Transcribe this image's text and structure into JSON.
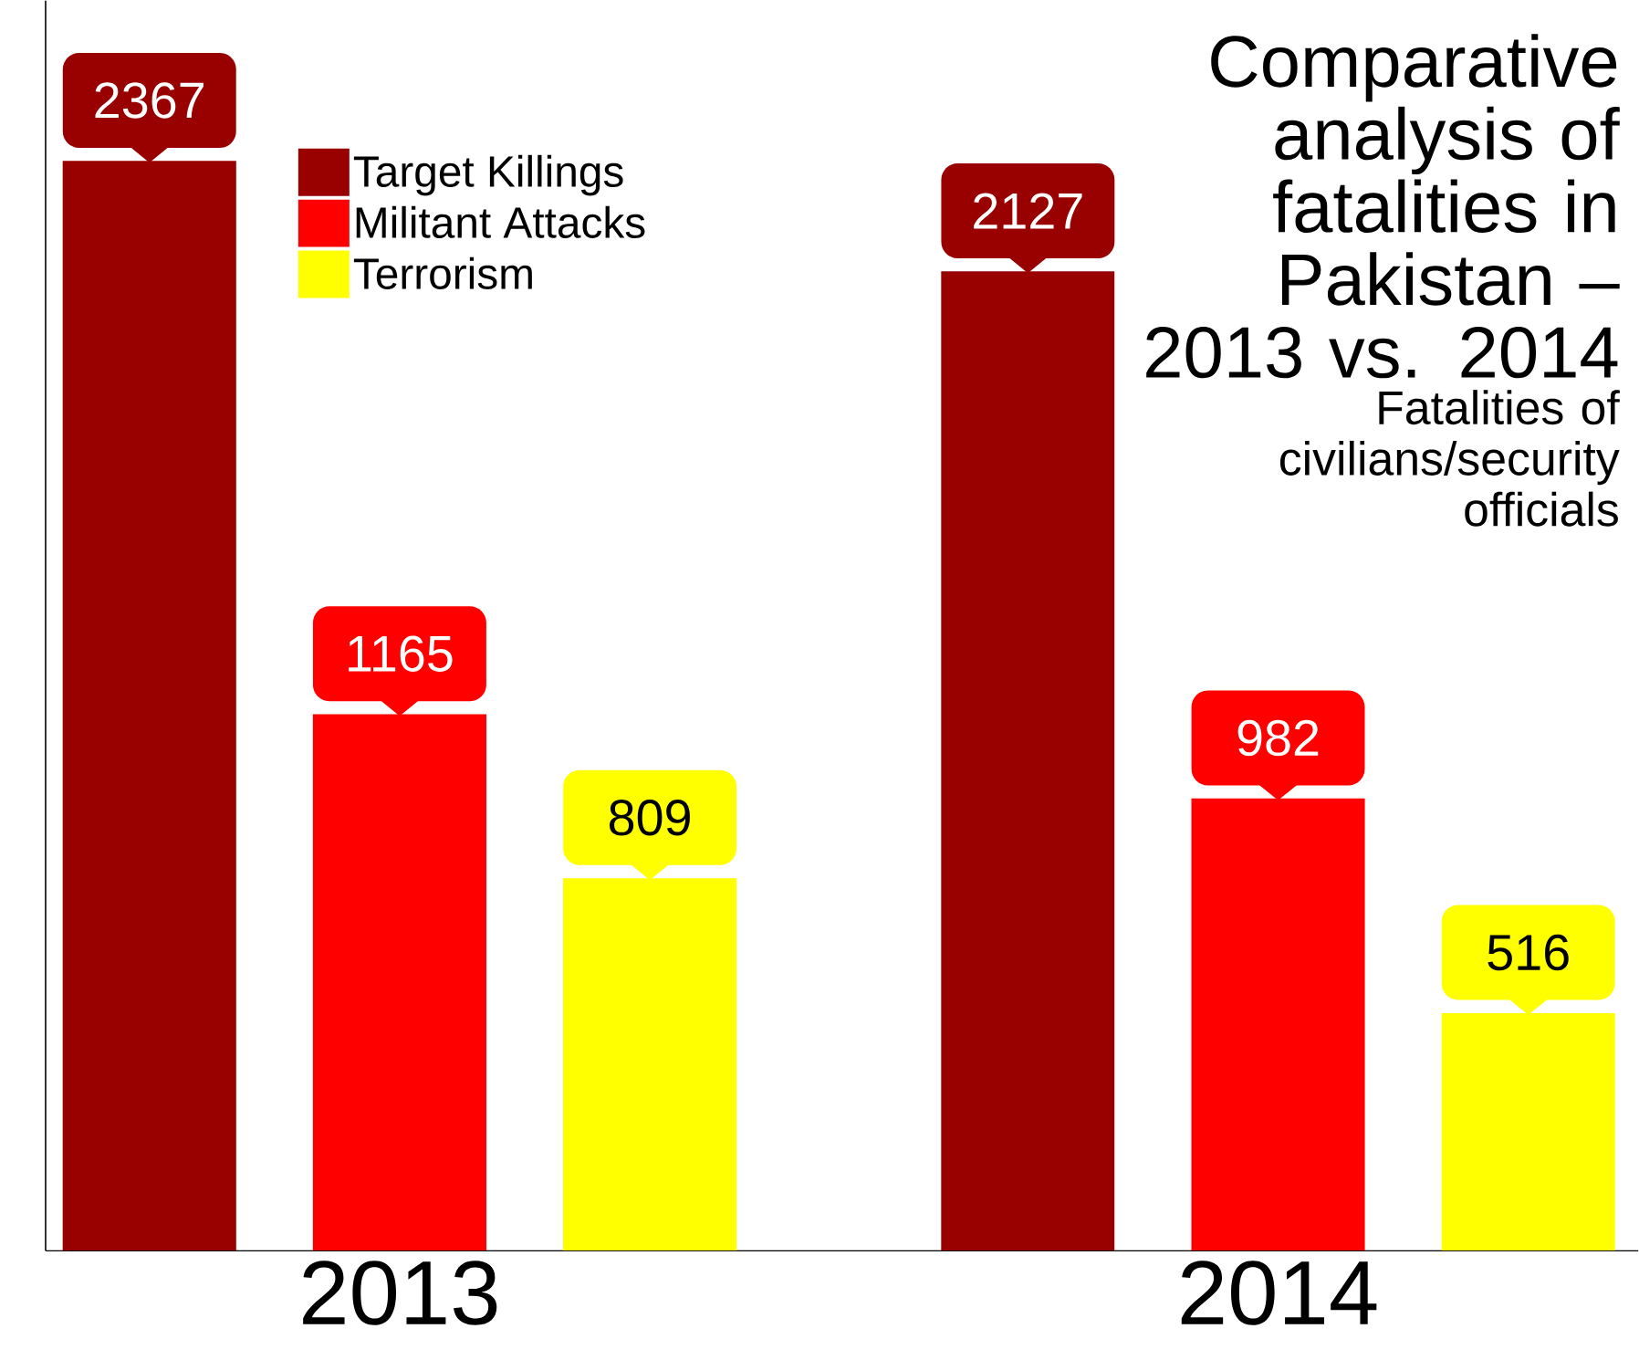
{
  "chart_data": {
    "type": "bar",
    "title": "Comparative analysis of fatalities in Pakistan – 2013 vs. 2014",
    "subtitle": "Fatalities of civilians/security officials",
    "categories": [
      "2013",
      "2014"
    ],
    "series": [
      {
        "name": "Target Killings",
        "color": "#990000",
        "values": [
          2367,
          2127
        ]
      },
      {
        "name": "Militant Attacks",
        "color": "#ff0000",
        "values": [
          1165,
          982
        ]
      },
      {
        "name": "Terrorism",
        "color": "#ffff00",
        "values": [
          809,
          516
        ]
      }
    ],
    "data_labels": true,
    "legend": "top left"
  }
}
